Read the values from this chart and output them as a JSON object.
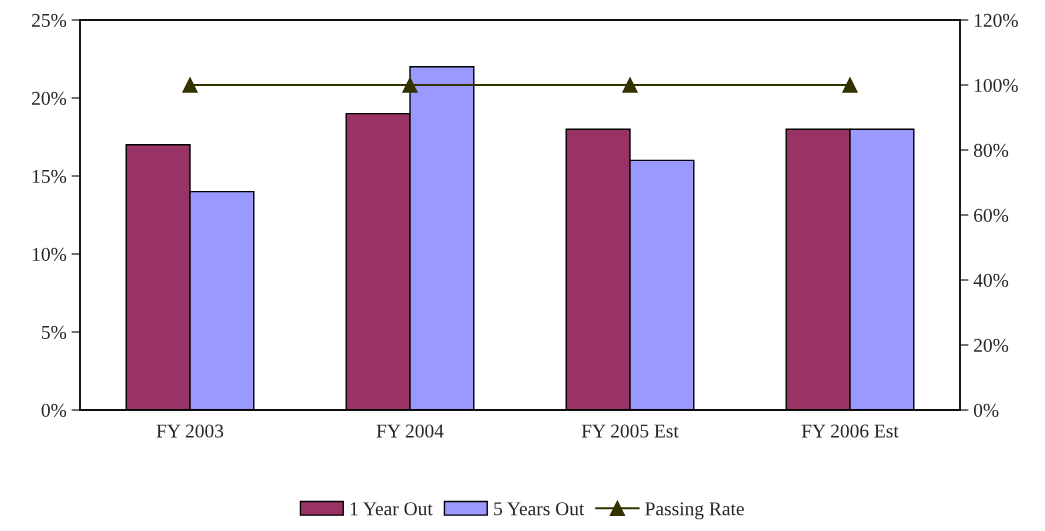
{
  "chart_data": {
    "type": "bar",
    "categories": [
      "FY 2003",
      "FY 2004",
      "FY 2005 Est",
      "FY 2006 Est"
    ],
    "series": [
      {
        "name": "1 Year Out",
        "color": "#993366",
        "values": [
          17,
          19,
          18,
          18
        ]
      },
      {
        "name": "5 Years Out",
        "color": "#9999ff",
        "values": [
          14,
          22,
          16,
          18
        ]
      },
      {
        "name": "Passing Rate",
        "type": "line",
        "axis": "y2",
        "color": "#333300",
        "marker": "triangle",
        "values": [
          100,
          100,
          100,
          100
        ]
      }
    ],
    "ylim": [
      0,
      25
    ],
    "yticks": [
      {
        "value": 0,
        "label": "0%"
      },
      {
        "value": 5,
        "label": "5%"
      },
      {
        "value": 10,
        "label": "10%"
      },
      {
        "value": 15,
        "label": "15%"
      },
      {
        "value": 20,
        "label": "20%"
      },
      {
        "value": 25,
        "label": "25%"
      }
    ],
    "y2lim": [
      0,
      120
    ],
    "y2ticks": [
      {
        "value": 0,
        "label": "0%"
      },
      {
        "value": 20,
        "label": "20%"
      },
      {
        "value": 40,
        "label": "40%"
      },
      {
        "value": 60,
        "label": "60%"
      },
      {
        "value": 80,
        "label": "80%"
      },
      {
        "value": 100,
        "label": "100%"
      },
      {
        "value": 120,
        "label": "120%"
      }
    ],
    "legend": "bottom",
    "grid": false
  }
}
